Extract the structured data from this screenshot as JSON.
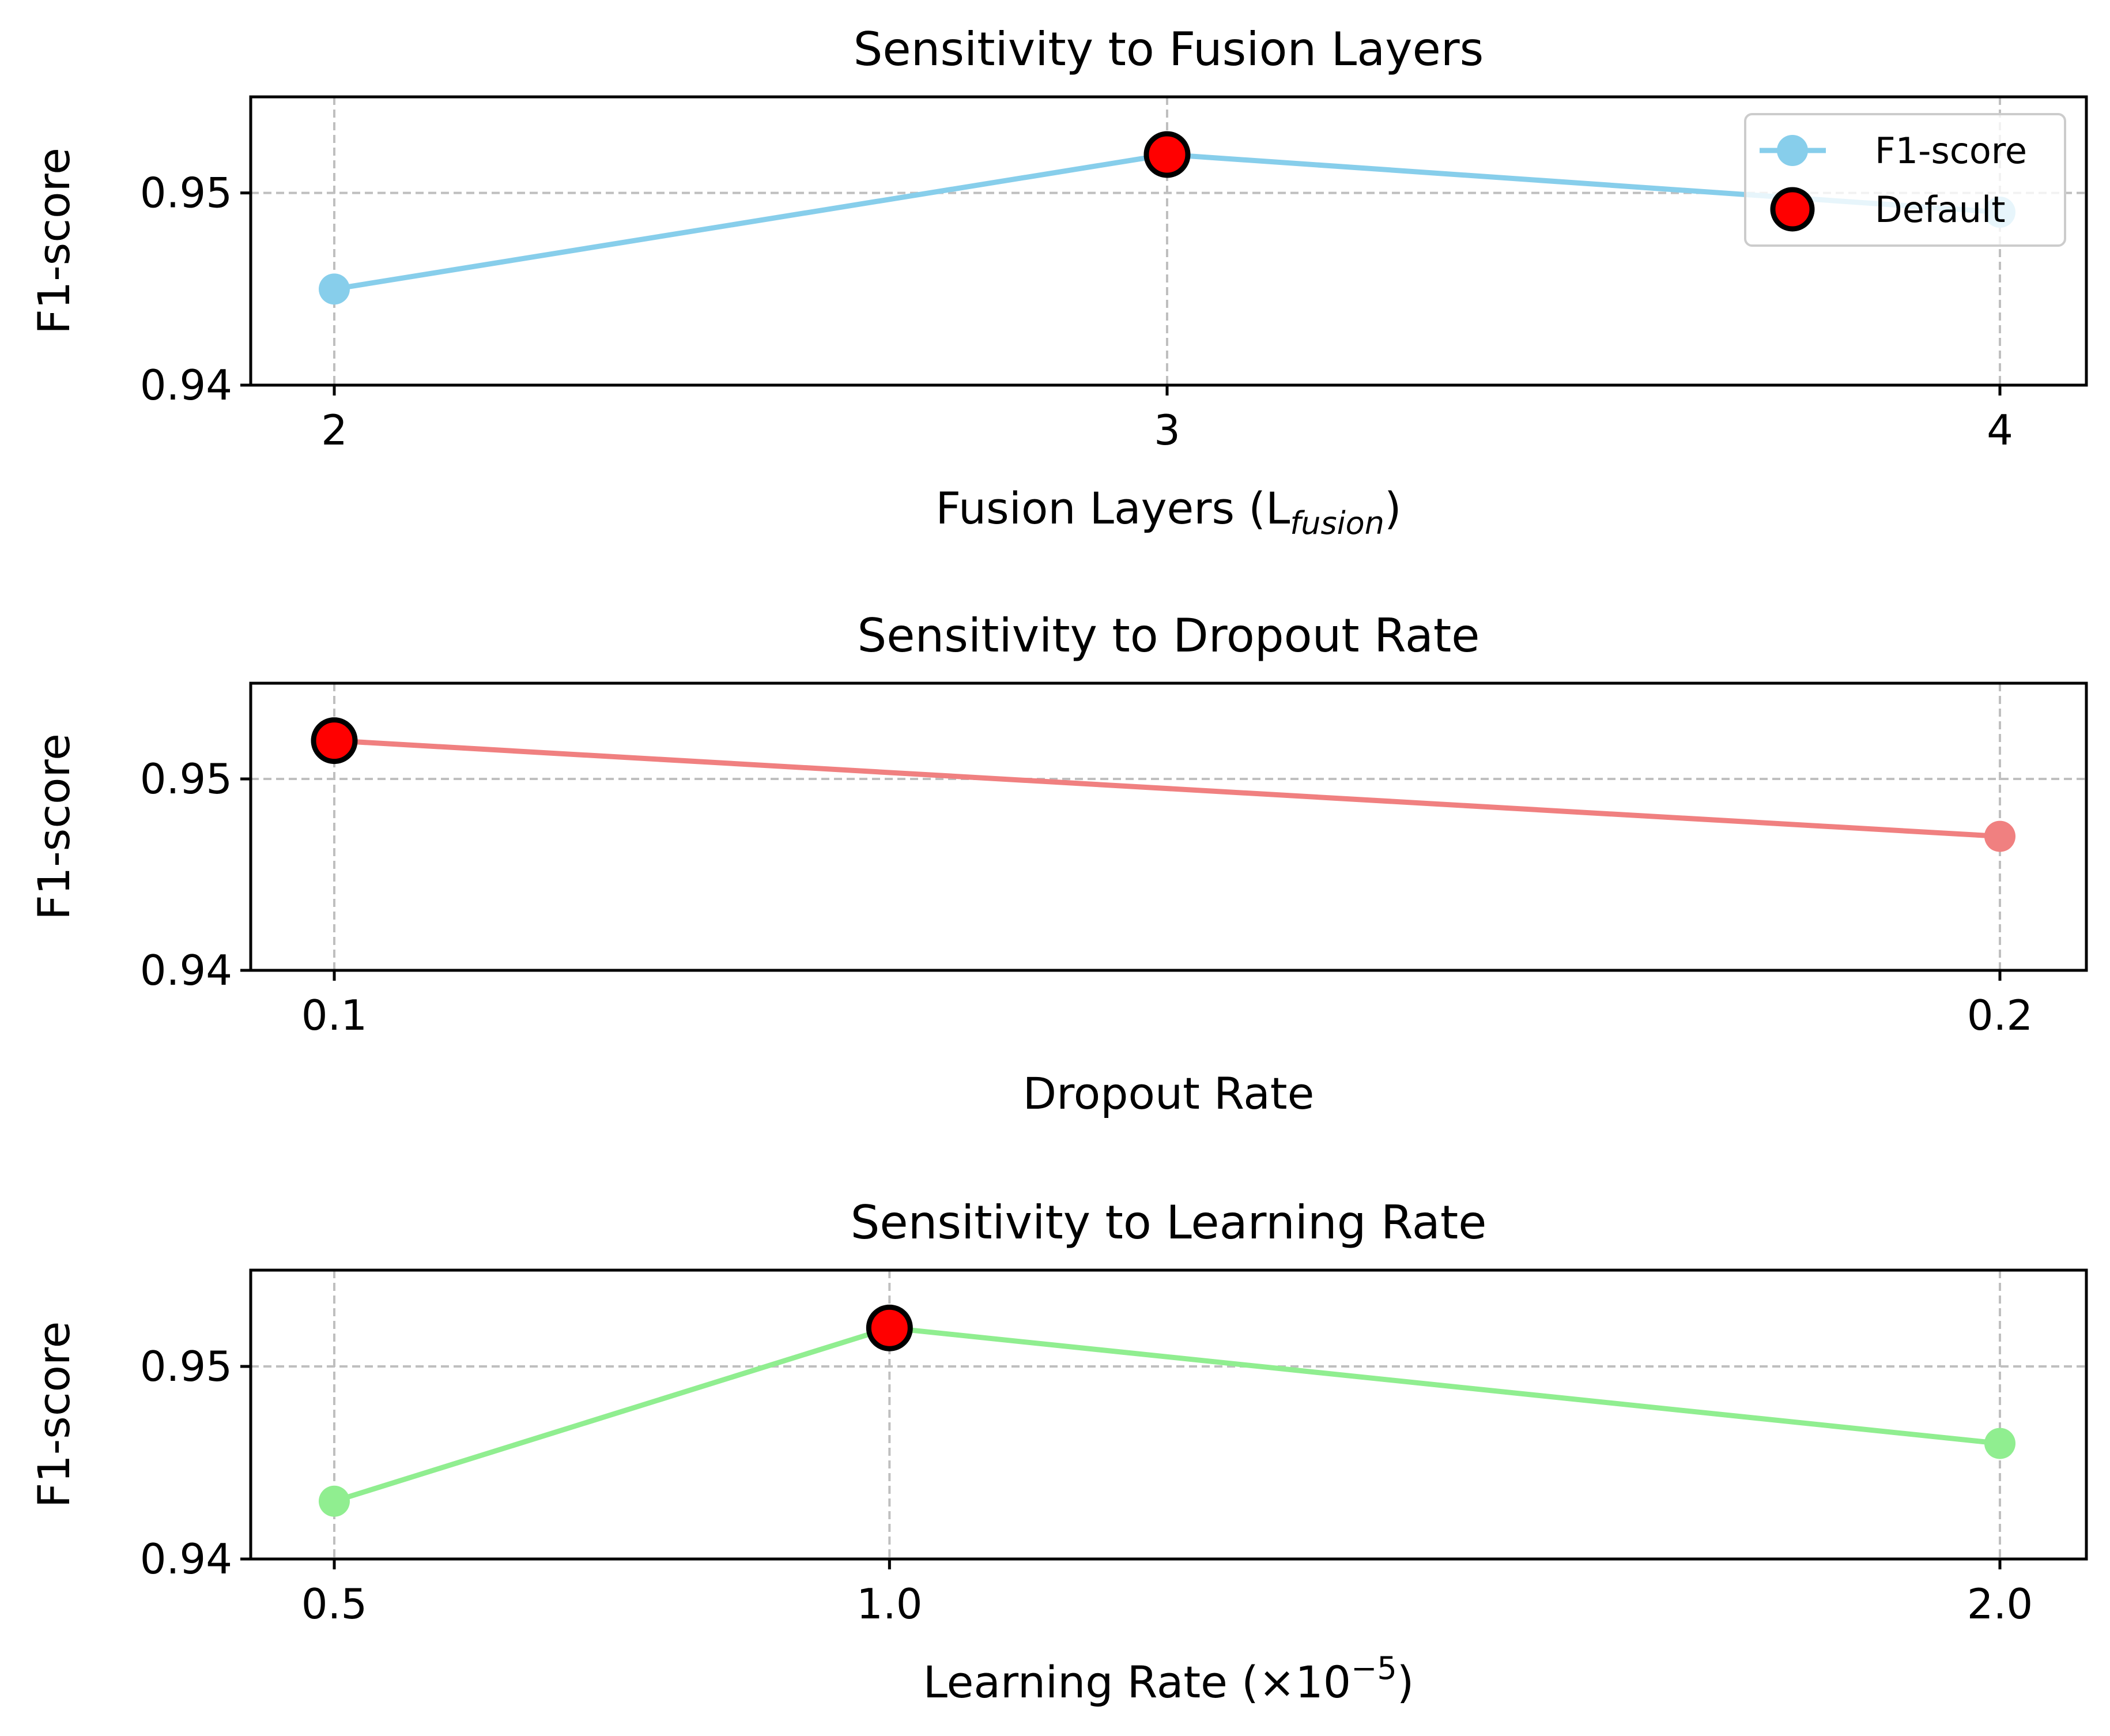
{
  "chart_data": [
    {
      "type": "line",
      "title": "Sensitivity to Fusion Layers",
      "xlabel": "Fusion Layers (L",
      "xlabel_sub": "fusion",
      "xlabel_end": ")",
      "ylabel": "F1-score",
      "ylim": [
        0.94,
        0.955
      ],
      "yticks": [
        "0.94",
        "0.95"
      ],
      "categories": [
        "2",
        "3",
        "4"
      ],
      "series": [
        {
          "name": "F1-score",
          "color": "#87ceeb",
          "values": [
            0.945,
            0.952,
            0.949
          ]
        }
      ],
      "default": {
        "name": "Default",
        "index": 1,
        "value": 0.952,
        "color": "#ff0000"
      },
      "legend": {
        "position": "top-right",
        "entries": [
          "F1-score",
          "Default"
        ]
      },
      "grid": true
    },
    {
      "type": "line",
      "title": "Sensitivity to Dropout Rate",
      "xlabel": "Dropout Rate",
      "ylabel": "F1-score",
      "ylim": [
        0.94,
        0.955
      ],
      "yticks": [
        "0.94",
        "0.95"
      ],
      "categories": [
        "0.1",
        "0.2"
      ],
      "series": [
        {
          "name": "F1-score",
          "color": "#f08080",
          "values": [
            0.952,
            0.947
          ]
        }
      ],
      "default": {
        "name": "Default",
        "index": 0,
        "value": 0.952,
        "color": "#ff0000"
      },
      "grid": true
    },
    {
      "type": "line",
      "title": "Sensitivity to Learning Rate",
      "xlabel": "Learning Rate (×10",
      "xlabel_sup": "−5",
      "xlabel_end": ")",
      "ylabel": "F1-score",
      "ylim": [
        0.94,
        0.955
      ],
      "yticks": [
        "0.94",
        "0.95"
      ],
      "categories": [
        "0.5",
        "1.0",
        "2.0"
      ],
      "x": [
        0.5,
        1.0,
        2.0
      ],
      "series": [
        {
          "name": "F1-score",
          "color": "#90ee90",
          "values": [
            0.943,
            0.952,
            0.946
          ]
        }
      ],
      "default": {
        "name": "Default",
        "index": 1,
        "value": 0.952,
        "color": "#ff0000"
      },
      "grid": true
    }
  ]
}
